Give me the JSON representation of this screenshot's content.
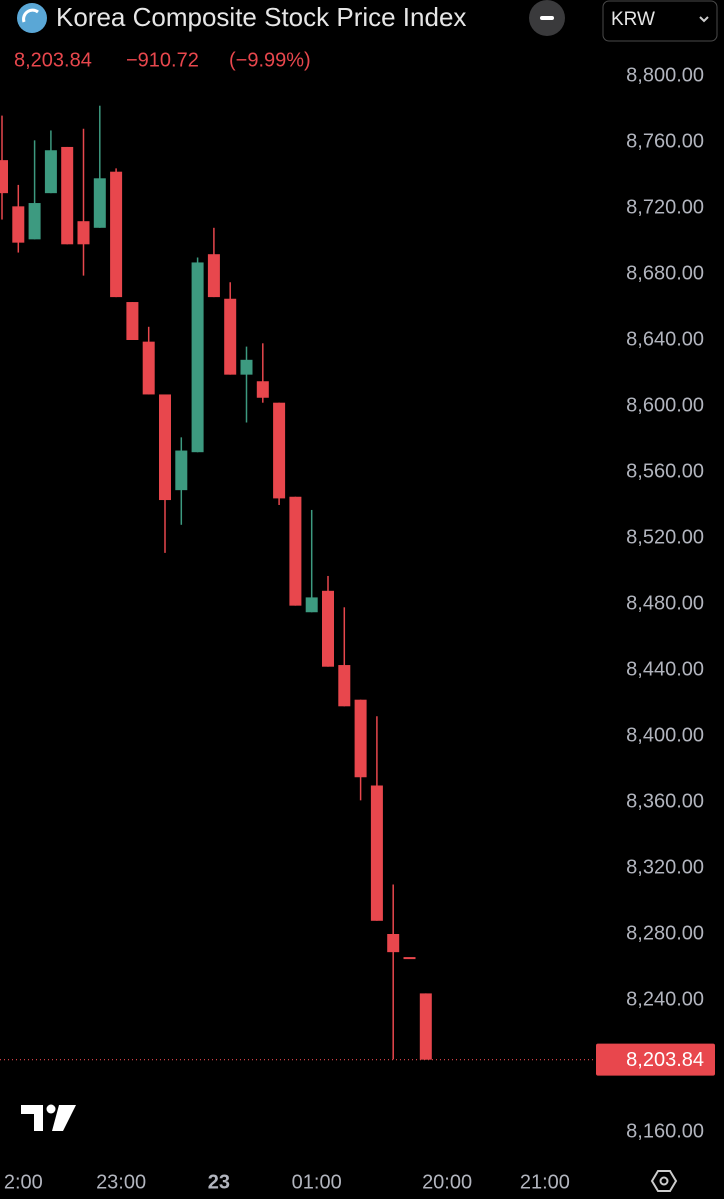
{
  "chart_data": {
    "type": "candlestick",
    "title": "Korea Composite Stock Price Index",
    "currency": "KRW",
    "last_price": {
      "value": 8203.84,
      "label": "8,203.84"
    },
    "change": "−910.72",
    "change_pct": "(−9.99%)",
    "up_color": "#3d9a80",
    "down_color": "#e8474d",
    "categories": [
      null,
      "2:00",
      null,
      null,
      null,
      null,
      null,
      "23:00",
      null,
      null,
      null,
      null,
      null,
      "23",
      null,
      null,
      null,
      null,
      null,
      "01:00",
      null,
      null,
      null,
      null,
      null,
      null,
      null,
      "20:00",
      null,
      null,
      null,
      null,
      null,
      "21:00"
    ],
    "open": [
      8749,
      8721,
      8701,
      8729,
      8757,
      8712,
      8708,
      8742,
      8663,
      8639,
      8607,
      8549,
      8572,
      8692,
      8665,
      8619,
      8615,
      8602,
      8545,
      8475,
      8488,
      8443,
      8422,
      8370,
      8280,
      8266,
      8244,
      null,
      null,
      null,
      null,
      null,
      null,
      null
    ],
    "high": [
      8776,
      8734,
      8761,
      8767,
      8757,
      8768,
      8782,
      8744,
      8663,
      8648,
      8607,
      8581,
      8690,
      8708,
      8675,
      8636,
      8638,
      8602,
      8545,
      8537,
      8497,
      8478,
      8422,
      8412,
      8310,
      8266,
      8244,
      null,
      null,
      null,
      null,
      null,
      null,
      null
    ],
    "low": [
      8713,
      8693,
      8701,
      8729,
      8698,
      8679,
      8708,
      8666,
      8640,
      8607,
      8511,
      8528,
      8572,
      8666,
      8619,
      8590,
      8602,
      8540,
      8479,
      8475,
      8442,
      8418,
      8361,
      8288,
      8204,
      8266,
      8203.84,
      null,
      null,
      null,
      null,
      null,
      null,
      null
    ],
    "close": [
      8729,
      8699,
      8723,
      8755,
      8698,
      8698,
      8738,
      8666,
      8640,
      8607,
      8543,
      8573,
      8687,
      8666,
      8619,
      8628,
      8605,
      8544,
      8479,
      8484,
      8442,
      8418,
      8375,
      8288,
      8269,
      8266,
      8203.84,
      null,
      null,
      null,
      null,
      null,
      null,
      null
    ],
    "ylim": [
      8160,
      8800
    ],
    "yticks": [
      {
        "value": 8160,
        "label": "8,160.00"
      },
      {
        "value": 8200,
        "label": "8,200.00"
      },
      {
        "value": 8240,
        "label": "8,240.00"
      },
      {
        "value": 8280,
        "label": "8,280.00"
      },
      {
        "value": 8320,
        "label": "8,320.00"
      },
      {
        "value": 8360,
        "label": "8,360.00"
      },
      {
        "value": 8400,
        "label": "8,400.00"
      },
      {
        "value": 8440,
        "label": "8,440.00"
      },
      {
        "value": 8480,
        "label": "8,480.00"
      },
      {
        "value": 8520,
        "label": "8,520.00"
      },
      {
        "value": 8560,
        "label": "8,560.00"
      },
      {
        "value": 8600,
        "label": "8,600.00"
      },
      {
        "value": 8640,
        "label": "8,640.00"
      },
      {
        "value": 8680,
        "label": "8,680.00"
      },
      {
        "value": 8720,
        "label": "8,720.00"
      },
      {
        "value": 8760,
        "label": "8,760.00"
      },
      {
        "value": 8800,
        "label": "8,800.00"
      }
    ],
    "grid": false
  }
}
